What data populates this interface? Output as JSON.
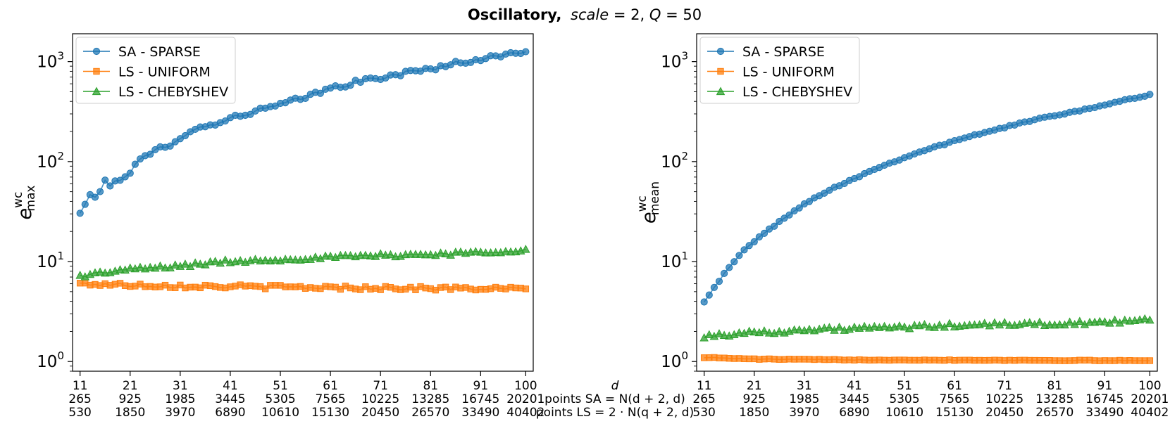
{
  "chart_data": {
    "title": {
      "bold_part": "Oscillatory,",
      "italic_part": "scale",
      "rest_part": " = 2, ",
      "q_italic": "Q",
      "q_rest": " = 50"
    },
    "x_label_rows": {
      "d_label": "d",
      "sa_label": "points SA = N(d + 2, d)",
      "ls_label": "points LS = 2 · N(q + 2, d)"
    },
    "x_tick_labels": [
      {
        "d": "11",
        "sa": "265",
        "ls": "530"
      },
      {
        "d": "21",
        "sa": "925",
        "ls": "1850"
      },
      {
        "d": "31",
        "sa": "1985",
        "ls": "3970"
      },
      {
        "d": "41",
        "sa": "3445",
        "ls": "6890"
      },
      {
        "d": "51",
        "sa": "5305",
        "ls": "10610"
      },
      {
        "d": "61",
        "sa": "7565",
        "ls": "15130"
      },
      {
        "d": "71",
        "sa": "10225",
        "ls": "20450"
      },
      {
        "d": "81",
        "sa": "13285",
        "ls": "26570"
      },
      {
        "d": "91",
        "sa": "16745",
        "ls": "33490"
      },
      {
        "d": "100",
        "sa": "20201",
        "ls": "40402"
      }
    ],
    "y_tick_labels": [
      "10",
      "10",
      "10",
      "10"
    ],
    "y_tick_exponents": [
      "0",
      "1",
      "2",
      "3"
    ],
    "panels": [
      {
        "type": "line",
        "yscale": "log",
        "ylim": [
          0.8,
          1900
        ],
        "xlim": [
          9.5,
          101.5
        ],
        "ylabel_main": "e",
        "ylabel_sup": "wc",
        "ylabel_sub": "max",
        "legend_position": "top-left",
        "series": [
          {
            "name": "SA - SPARSE",
            "color": "#1f77b4",
            "marker": "circle",
            "d_start": 11,
            "d_end": 100,
            "anchors": [
              [
                11,
                30
              ],
              [
                12,
                38
              ],
              [
                13,
                45
              ],
              [
                14,
                46
              ],
              [
                15,
                50
              ],
              [
                16,
                62
              ],
              [
                17,
                58
              ],
              [
                19,
                68
              ],
              [
                21,
                78
              ],
              [
                23,
                105
              ],
              [
                25,
                115
              ],
              [
                27,
                140
              ],
              [
                29,
                150
              ],
              [
                31,
                175
              ],
              [
                33,
                200
              ],
              [
                36,
                225
              ],
              [
                41,
                270
              ],
              [
                46,
                320
              ],
              [
                51,
                370
              ],
              [
                56,
                440
              ],
              [
                61,
                540
              ],
              [
                66,
                620
              ],
              [
                71,
                690
              ],
              [
                76,
                770
              ],
              [
                81,
                850
              ],
              [
                86,
                960
              ],
              [
                91,
                1060
              ],
              [
                96,
                1170
              ],
              [
                100,
                1250
              ]
            ],
            "noise": 0.05
          },
          {
            "name": "LS - UNIFORM",
            "color": "#ff7f0e",
            "marker": "square",
            "d_start": 11,
            "d_end": 100,
            "anchors": [
              [
                11,
                6.0
              ],
              [
                30,
                5.7
              ],
              [
                60,
                5.5
              ],
              [
                100,
                5.3
              ]
            ],
            "noise": 0.045
          },
          {
            "name": "LS - CHEBYSHEV",
            "color": "#2ca02c",
            "marker": "triangle",
            "d_start": 11,
            "d_end": 100,
            "anchors": [
              [
                11,
                7.2
              ],
              [
                20,
                8.3
              ],
              [
                30,
                9.0
              ],
              [
                40,
                10.0
              ],
              [
                50,
                10.5
              ],
              [
                60,
                11.0
              ],
              [
                70,
                11.5
              ],
              [
                80,
                11.8
              ],
              [
                90,
                12.3
              ],
              [
                100,
                13.2
              ]
            ],
            "noise": 0.04
          }
        ]
      },
      {
        "type": "line",
        "yscale": "log",
        "ylim": [
          0.8,
          1900
        ],
        "xlim": [
          9.5,
          101.5
        ],
        "ylabel_main": "e",
        "ylabel_sup": "wc",
        "ylabel_sub": "mean",
        "legend_position": "top-left",
        "series": [
          {
            "name": "SA - SPARSE",
            "color": "#1f77b4",
            "marker": "circle",
            "d_start": 11,
            "d_end": 100,
            "anchors": [
              [
                11,
                4.0
              ],
              [
                13,
                5.5
              ],
              [
                15,
                7.5
              ],
              [
                17,
                10
              ],
              [
                19,
                13
              ],
              [
                21,
                16
              ],
              [
                24,
                21
              ],
              [
                27,
                27
              ],
              [
                31,
                38
              ],
              [
                36,
                52
              ],
              [
                41,
                68
              ],
              [
                46,
                88
              ],
              [
                51,
                110
              ],
              [
                56,
                135
              ],
              [
                61,
                160
              ],
              [
                66,
                190
              ],
              [
                71,
                220
              ],
              [
                76,
                255
              ],
              [
                81,
                290
              ],
              [
                86,
                325
              ],
              [
                91,
                370
              ],
              [
                96,
                420
              ],
              [
                100,
                470
              ]
            ],
            "noise": 0.015
          },
          {
            "name": "LS - UNIFORM",
            "color": "#ff7f0e",
            "marker": "square",
            "d_start": 11,
            "d_end": 100,
            "anchors": [
              [
                11,
                1.1
              ],
              [
                20,
                1.06
              ],
              [
                40,
                1.04
              ],
              [
                100,
                1.02
              ]
            ],
            "noise": 0.008
          },
          {
            "name": "LS - CHEBYSHEV",
            "color": "#2ca02c",
            "marker": "triangle",
            "d_start": 11,
            "d_end": 100,
            "anchors": [
              [
                11,
                1.8
              ],
              [
                20,
                1.95
              ],
              [
                30,
                2.05
              ],
              [
                40,
                2.15
              ],
              [
                50,
                2.2
              ],
              [
                60,
                2.3
              ],
              [
                70,
                2.35
              ],
              [
                80,
                2.4
              ],
              [
                90,
                2.45
              ],
              [
                100,
                2.6
              ]
            ],
            "noise": 0.045
          }
        ]
      }
    ]
  }
}
